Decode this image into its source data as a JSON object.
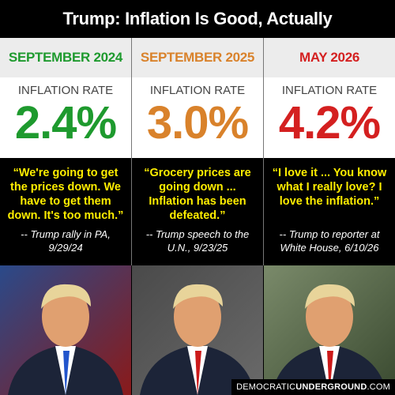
{
  "header": {
    "title": "Trump: Inflation Is Good, Actually"
  },
  "columns": [
    {
      "date": "SEPTEMBER 2024",
      "color": "#1e9a2e",
      "label": "INFLATION RATE",
      "rate": "2.4%",
      "quote": "“We're going to get the prices down. We have to get them down. It's too much.”",
      "attribution": "-- Trump rally in PA, 9/29/24"
    },
    {
      "date": "SEPTEMBER 2025",
      "color": "#d9822b",
      "label": "INFLATION RATE",
      "rate": "3.0%",
      "quote": "“Grocery prices are going down ... Inflation has been defeated.”",
      "attribution": "-- Trump speech to the U.N., 9/23/25"
    },
    {
      "date": "MAY 2026",
      "color": "#d42020",
      "label": "INFLATION RATE",
      "rate": "4.2%",
      "quote": "“I love it ... You know what I really love? I love the inflation.”",
      "attribution": "-- Trump to reporter at White House, 6/10/26"
    }
  ],
  "footer": {
    "prefix": "DEMOCRATIC",
    "name": "UNDERGROUND",
    "suffix": ".COM"
  }
}
